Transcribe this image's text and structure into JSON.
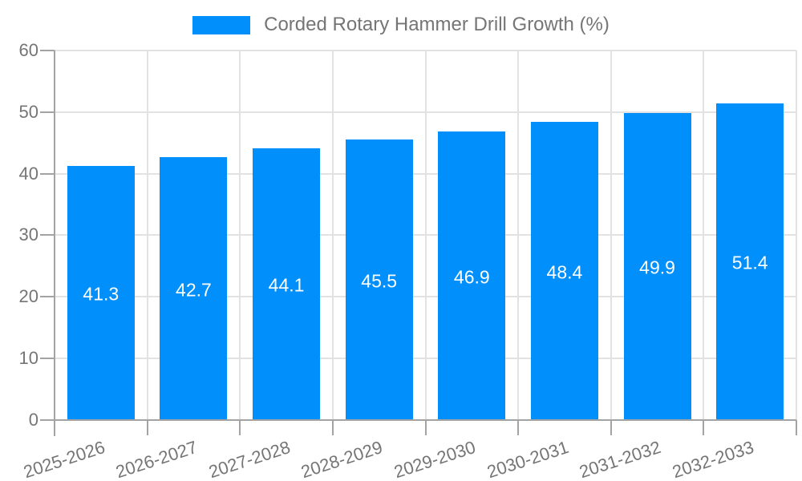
{
  "legend": {
    "label": "Corded Rotary Hammer Drill Growth (%)"
  },
  "chart_data": {
    "type": "bar",
    "title": "Corded Rotary Hammer Drill Growth (%)",
    "categories": [
      "2025-2026",
      "2026-2027",
      "2027-2028",
      "2028-2029",
      "2029-2030",
      "2030-2031",
      "2031-2032",
      "2032-2033"
    ],
    "values": [
      41.3,
      42.7,
      44.1,
      45.5,
      46.9,
      48.4,
      49.9,
      51.4
    ],
    "xlabel": "",
    "ylabel": "",
    "ylim": [
      0,
      60
    ],
    "ytick_step": 10,
    "yticks": [
      0,
      10,
      20,
      30,
      40,
      50,
      60
    ],
    "grid": true,
    "legend_position": "top",
    "value_labels": "inside-center",
    "colors": {
      "bar": "#008FFB",
      "value_label": "#ffffff",
      "axis_text": "#757575",
      "grid_line": "#e2e2e2",
      "axis_line": "#a3a3a3"
    }
  }
}
